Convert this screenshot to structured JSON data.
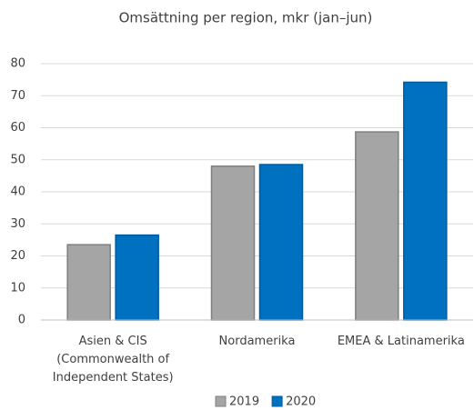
{
  "chart_data": {
    "type": "bar",
    "title": "Omsättning per region, mkr (jan–jun)",
    "categories": [
      "Asien & CIS (Commonwealth of Independent States)",
      "Nordamerika",
      "EMEA & Latinamerika"
    ],
    "series": [
      {
        "name": "2019",
        "color": "#a5a5a5",
        "values": [
          23.5,
          48,
          58.7
        ]
      },
      {
        "name": "2020",
        "color": "#0070c0",
        "values": [
          26.5,
          48.5,
          74.2
        ]
      }
    ],
    "ylim": [
      0,
      80
    ],
    "yticks": [
      0,
      10,
      20,
      30,
      40,
      50,
      60,
      70,
      80
    ],
    "grid": true,
    "legend": "bottom"
  }
}
